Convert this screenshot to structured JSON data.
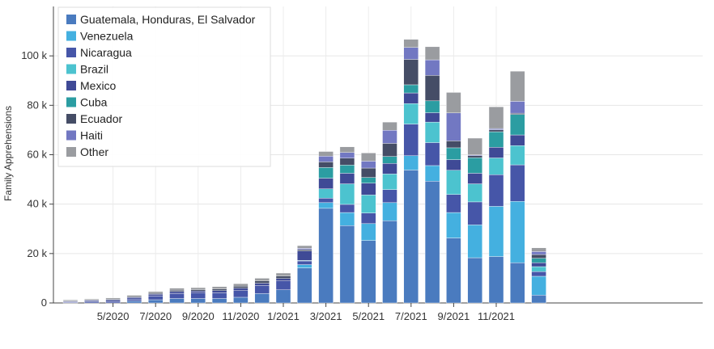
{
  "chart_data": {
    "type": "bar",
    "stacked": true,
    "title": "",
    "xlabel": "",
    "ylabel": "Family Apprehensions",
    "ylim": [
      0,
      120000
    ],
    "yticks": [
      {
        "value": 0,
        "label": "0"
      },
      {
        "value": 20000,
        "label": "20 k"
      },
      {
        "value": 40000,
        "label": "40 k"
      },
      {
        "value": 60000,
        "label": "60 k"
      },
      {
        "value": 80000,
        "label": "80 k"
      },
      {
        "value": 100000,
        "label": "100 k"
      }
    ],
    "grid": true,
    "legend_position": "top-left",
    "categories": [
      "3/2020",
      "4/2020",
      "5/2020",
      "6/2020",
      "7/2020",
      "8/2020",
      "9/2020",
      "10/2020",
      "11/2020",
      "12/2020",
      "1/2021",
      "2/2021",
      "3/2021",
      "4/2021",
      "5/2021",
      "6/2021",
      "7/2021",
      "8/2021",
      "9/2021",
      "10/2021",
      "11/2021",
      "12/2021",
      "1/2022"
    ],
    "xtick_labels": [
      {
        "index": 2,
        "label": "5/2020"
      },
      {
        "index": 4,
        "label": "7/2020"
      },
      {
        "index": 6,
        "label": "9/2020"
      },
      {
        "index": 8,
        "label": "11/2020"
      },
      {
        "index": 10,
        "label": "1/2021"
      },
      {
        "index": 12,
        "label": "3/2021"
      },
      {
        "index": 14,
        "label": "5/2021"
      },
      {
        "index": 16,
        "label": "7/2021"
      },
      {
        "index": 18,
        "label": "9/2021"
      },
      {
        "index": 20,
        "label": "11/2021"
      }
    ],
    "series": [
      {
        "name": "Guatemala, Honduras, El Salvador",
        "color": "#4a7bbf",
        "values": [
          0,
          0,
          0,
          800,
          1300,
          1800,
          1800,
          1800,
          2300,
          3800,
          5300,
          14200,
          38300,
          31300,
          25300,
          33300,
          53800,
          49300,
          26300,
          18300,
          18800,
          16300,
          3200
        ]
      },
      {
        "name": "Venezuela",
        "color": "#44b0e0",
        "values": [
          0,
          0,
          0,
          0,
          0,
          0,
          0,
          0,
          0,
          0,
          0,
          1300,
          2300,
          5300,
          6800,
          7300,
          5800,
          6300,
          10300,
          13300,
          20300,
          24800,
          7600
        ]
      },
      {
        "name": "Nicaragua",
        "color": "#4656a8",
        "values": [
          300,
          500,
          600,
          800,
          1500,
          2000,
          2200,
          2300,
          2700,
          3200,
          3600,
          1500,
          1800,
          3300,
          4300,
          5300,
          12800,
          9300,
          7300,
          9300,
          12800,
          14800,
          1900
        ]
      },
      {
        "name": "Brazil",
        "color": "#4cc3cf",
        "values": [
          0,
          0,
          0,
          0,
          0,
          0,
          0,
          0,
          0,
          0,
          0,
          200,
          3800,
          8300,
          7300,
          6300,
          8300,
          8300,
          9800,
          7300,
          6800,
          7800,
          2000
        ]
      },
      {
        "name": "Mexico",
        "color": "#3f4a96",
        "values": [
          300,
          500,
          600,
          600,
          700,
          800,
          800,
          900,
          1000,
          1000,
          1000,
          3800,
          4300,
          4300,
          4800,
          4300,
          4300,
          3800,
          4300,
          4300,
          4300,
          4300,
          1600
        ]
      },
      {
        "name": "Cuba",
        "color": "#2b9da2",
        "values": [
          0,
          0,
          0,
          0,
          0,
          0,
          0,
          0,
          0,
          0,
          0,
          0,
          4300,
          3300,
          2300,
          2800,
          3300,
          4800,
          4800,
          6300,
          6300,
          8300,
          1800
        ]
      },
      {
        "name": "Ecuador",
        "color": "#454d66",
        "values": [
          200,
          200,
          300,
          300,
          400,
          600,
          600,
          700,
          800,
          900,
          1000,
          600,
          2300,
          2800,
          3800,
          5300,
          10300,
          10300,
          2800,
          800,
          800,
          500,
          1500
        ]
      },
      {
        "name": "Haiti",
        "color": "#7278c2",
        "values": [
          0,
          0,
          0,
          0,
          0,
          0,
          0,
          0,
          0,
          0,
          0,
          500,
          2300,
          2300,
          2800,
          5300,
          4800,
          6300,
          11300,
          300,
          500,
          4800,
          1200
        ]
      },
      {
        "name": "Other",
        "color": "#9a9ca0",
        "values": [
          400,
          400,
          500,
          600,
          700,
          800,
          800,
          900,
          1000,
          1100,
          1200,
          1100,
          1900,
          2300,
          3300,
          3300,
          3300,
          5300,
          8300,
          6800,
          8800,
          12200,
          1500
        ]
      }
    ]
  }
}
